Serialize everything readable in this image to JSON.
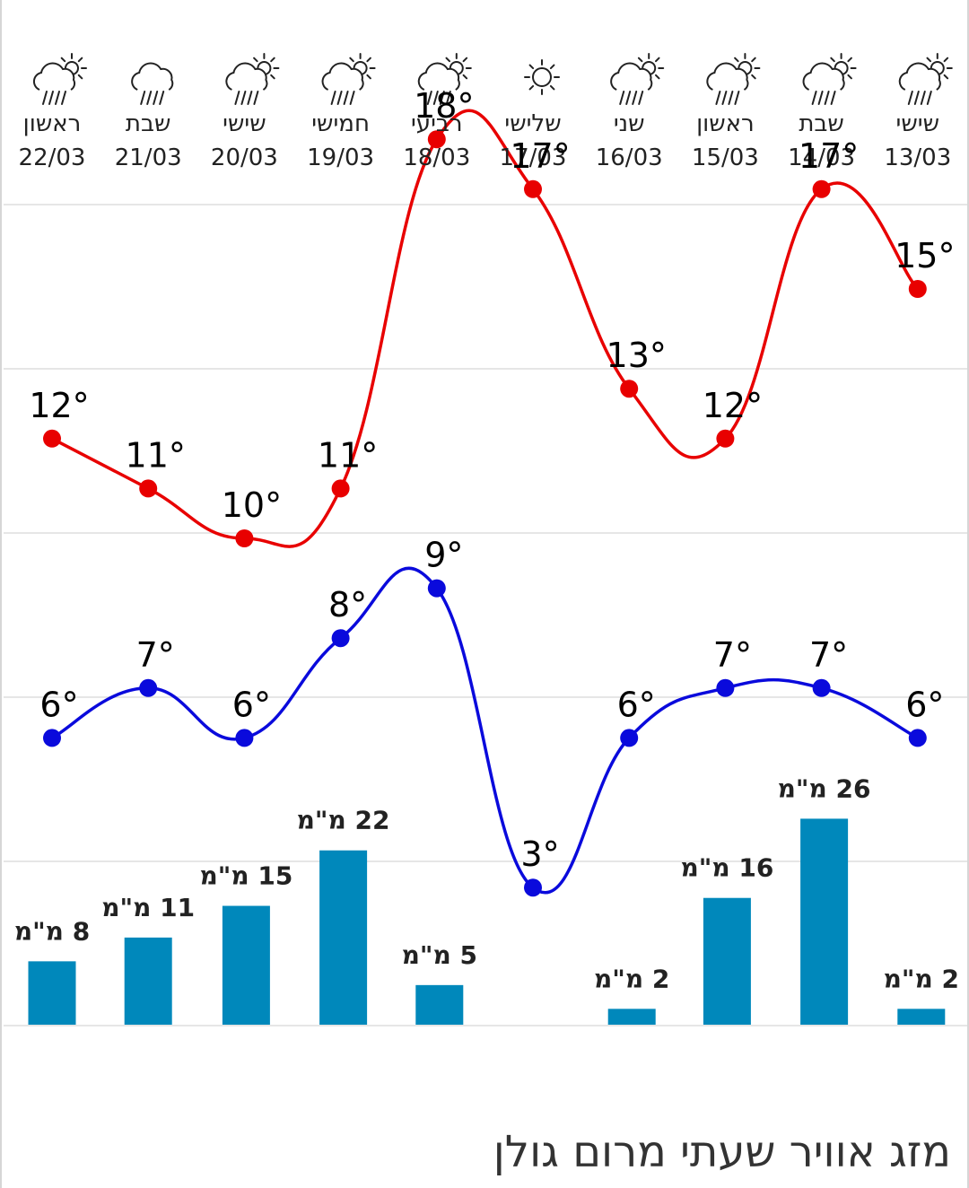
{
  "chart_data": {
    "type": "line",
    "title": "מזג אוויר שעתי מרום גולן",
    "categories": [
      "22/03",
      "21/03",
      "20/03",
      "19/03",
      "18/03",
      "17/03",
      "16/03",
      "15/03",
      "14/03",
      "13/03"
    ],
    "days": [
      "ראשון",
      "שבת",
      "שישי",
      "חמישי",
      "רביעי",
      "שלישי",
      "שני",
      "ראשון",
      "שבת",
      "שישי"
    ],
    "icons": [
      "rain-sun-icon",
      "rain-cloud-icon",
      "rain-sun-icon",
      "rain-sun-icon",
      "rain-sun-icon",
      "sun-icon",
      "rain-sun-icon",
      "rain-sun-icon",
      "rain-sun-icon",
      "rain-sun-icon"
    ],
    "series": [
      {
        "name": "",
        "kind": "max-temp",
        "color": "#e80000",
        "values": [
          12,
          11,
          10,
          11,
          18,
          17,
          13,
          12,
          17,
          15
        ]
      },
      {
        "name": "",
        "kind": "min-temp",
        "color": "#0a0adc",
        "values": [
          6,
          7,
          6,
          8,
          9,
          3,
          6,
          7,
          7,
          6
        ]
      },
      {
        "name": "",
        "kind": "precip",
        "color": "#0088bb",
        "values": [
          8,
          11,
          15,
          22,
          5,
          0,
          2,
          16,
          26,
          2
        ]
      }
    ],
    "temp_unit": "°",
    "precip_unit": "מ\"מ",
    "ylim_temp": [
      0,
      21
    ],
    "grid": true
  }
}
